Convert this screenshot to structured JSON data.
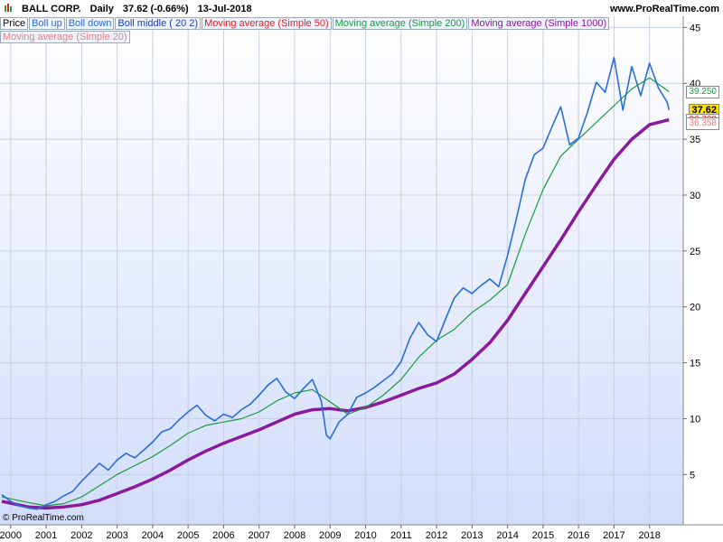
{
  "header": {
    "symbol": "BALL CORP.",
    "period": "Daily",
    "last": "37.62 (-0.66%)",
    "date": "13-Jul-2018",
    "site": "www.ProRealTime.com"
  },
  "legend": [
    {
      "label": "Price",
      "color": "#000000"
    },
    {
      "label": "Boll up",
      "color": "#2a6dd6"
    },
    {
      "label": "Boll down",
      "color": "#2a6dd6"
    },
    {
      "label": "Boll middle ( 20 2)",
      "color": "#1a3fa8"
    },
    {
      "label": "Moving average (Simple 50)",
      "color": "#e02020"
    },
    {
      "label": "Moving average (Simple 200)",
      "color": "#1a9a3a"
    },
    {
      "label": "Moving average (Simple 1000)",
      "color": "#8a1a9a"
    },
    {
      "label": "Moving average (Simple 20)",
      "color": "#e08080"
    }
  ],
  "credit": "© ProRealTime.com",
  "price_labels": [
    {
      "text": "39.250",
      "value": 39.25,
      "color": "#1a9a3a",
      "bg": "#ffffff"
    },
    {
      "text": "37.62",
      "value": 37.62,
      "color": "#000000",
      "bg": "#ffe000"
    },
    {
      "text": "36.738",
      "value": 36.738,
      "color": "#e02020",
      "bg": "#ffffff"
    },
    {
      "text": "36.358",
      "value": 36.358,
      "color": "#e08080",
      "bg": "#ffffff"
    }
  ],
  "chart_data": {
    "type": "line",
    "title": "BALL CORP. Daily",
    "x_ticks": [
      "2000",
      "2001",
      "2002",
      "2003",
      "2004",
      "2005",
      "2006",
      "2007",
      "2008",
      "2009",
      "2010",
      "2011",
      "2012",
      "2013",
      "2014",
      "2015",
      "2016",
      "2017",
      "2018"
    ],
    "y_ticks": [
      5,
      10,
      15,
      20,
      25,
      30,
      35,
      40,
      45
    ],
    "ylim": [
      0.5,
      46
    ],
    "xlim": [
      1999.7,
      2018.95
    ],
    "grid": true,
    "series": [
      {
        "name": "Price",
        "color": "#2a6dd6",
        "x": [
          1999.75,
          2000.0,
          2000.25,
          2000.5,
          2000.75,
          2001.0,
          2001.25,
          2001.5,
          2001.75,
          2002.0,
          2002.25,
          2002.5,
          2002.75,
          2003.0,
          2003.25,
          2003.5,
          2003.75,
          2004.0,
          2004.25,
          2004.5,
          2004.75,
          2005.0,
          2005.25,
          2005.5,
          2005.75,
          2006.0,
          2006.25,
          2006.5,
          2006.75,
          2007.0,
          2007.25,
          2007.5,
          2007.75,
          2008.0,
          2008.25,
          2008.5,
          2008.75,
          2008.9,
          2009.0,
          2009.25,
          2009.5,
          2009.75,
          2010.0,
          2010.25,
          2010.5,
          2010.75,
          2011.0,
          2011.25,
          2011.5,
          2011.75,
          2012.0,
          2012.25,
          2012.5,
          2012.75,
          2013.0,
          2013.25,
          2013.5,
          2013.75,
          2014.0,
          2014.25,
          2014.5,
          2014.75,
          2015.0,
          2015.25,
          2015.5,
          2015.75,
          2016.0,
          2016.25,
          2016.5,
          2016.75,
          2017.0,
          2017.25,
          2017.5,
          2017.75,
          2018.0,
          2018.25,
          2018.5,
          2018.55
        ],
        "values": [
          3.2,
          2.6,
          2.2,
          2.0,
          1.9,
          2.3,
          2.6,
          3.1,
          3.5,
          4.4,
          5.2,
          6.0,
          5.4,
          6.3,
          6.9,
          6.5,
          7.2,
          7.9,
          8.8,
          9.1,
          9.9,
          10.6,
          11.2,
          10.3,
          9.8,
          10.4,
          10.1,
          10.8,
          11.3,
          12.1,
          13.0,
          13.6,
          12.4,
          11.8,
          12.7,
          13.5,
          11.6,
          8.5,
          8.2,
          9.7,
          10.4,
          11.9,
          12.3,
          12.8,
          13.4,
          14.0,
          15.1,
          17.2,
          18.6,
          17.5,
          16.9,
          18.9,
          20.8,
          21.7,
          21.2,
          21.9,
          22.5,
          21.8,
          24.6,
          27.9,
          31.4,
          33.6,
          34.2,
          36.1,
          37.9,
          34.5,
          35.1,
          37.4,
          40.1,
          39.2,
          42.3,
          37.6,
          41.5,
          38.9,
          41.8,
          39.6,
          38.3,
          37.62
        ]
      },
      {
        "name": "Moving average (Simple 200)",
        "color": "#1a9a3a",
        "x": [
          1999.75,
          2000.5,
          2001.0,
          2001.5,
          2002.0,
          2002.5,
          2003.0,
          2003.5,
          2004.0,
          2004.5,
          2005.0,
          2005.5,
          2006.0,
          2006.5,
          2007.0,
          2007.5,
          2008.0,
          2008.5,
          2009.0,
          2009.5,
          2010.0,
          2010.5,
          2011.0,
          2011.5,
          2012.0,
          2012.5,
          2013.0,
          2013.5,
          2014.0,
          2014.5,
          2015.0,
          2015.5,
          2016.0,
          2016.5,
          2017.0,
          2017.5,
          2018.0,
          2018.55
        ],
        "values": [
          3.0,
          2.5,
          2.2,
          2.4,
          3.0,
          4.0,
          5.0,
          5.8,
          6.6,
          7.6,
          8.7,
          9.4,
          9.7,
          10.0,
          10.6,
          11.6,
          12.3,
          12.6,
          11.5,
          10.4,
          11.0,
          12.1,
          13.5,
          15.5,
          17.0,
          18.0,
          19.5,
          20.6,
          22.0,
          26.5,
          30.5,
          33.5,
          35.0,
          36.5,
          38.0,
          39.5,
          40.5,
          39.25
        ]
      },
      {
        "name": "Moving average (Simple 1000)",
        "color": "#8a1a9a",
        "x": [
          1999.75,
          2000.5,
          2001.0,
          2001.5,
          2002.0,
          2002.5,
          2003.0,
          2003.5,
          2004.0,
          2004.5,
          2005.0,
          2005.5,
          2006.0,
          2006.5,
          2007.0,
          2007.5,
          2008.0,
          2008.5,
          2009.0,
          2009.5,
          2010.0,
          2010.5,
          2011.0,
          2011.5,
          2012.0,
          2012.5,
          2013.0,
          2013.5,
          2014.0,
          2014.5,
          2015.0,
          2015.5,
          2016.0,
          2016.5,
          2017.0,
          2017.5,
          2018.0,
          2018.55
        ],
        "values": [
          2.6,
          2.1,
          2.0,
          2.1,
          2.3,
          2.7,
          3.3,
          3.9,
          4.6,
          5.4,
          6.3,
          7.1,
          7.8,
          8.4,
          9.0,
          9.7,
          10.4,
          10.8,
          10.9,
          10.7,
          11.0,
          11.5,
          12.1,
          12.7,
          13.2,
          14.0,
          15.3,
          16.8,
          18.8,
          21.2,
          23.6,
          26.0,
          28.5,
          30.9,
          33.2,
          35.0,
          36.3,
          36.738
        ]
      }
    ]
  }
}
